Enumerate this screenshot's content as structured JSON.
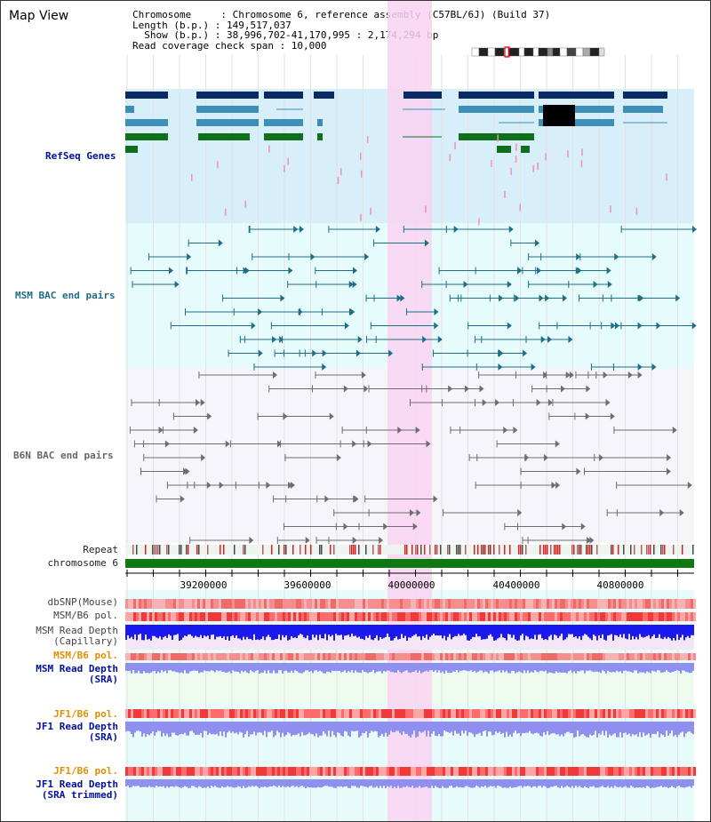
{
  "header": {
    "title": "Map View",
    "chromosome_line": "Chromosome     : Chromosome 6, reference assembly (C57BL/6J) (Build 37)",
    "length_line": "Length (b.p.) : 149,517,037",
    "show_line": "  Show (b.p.) : 38,996,702-41,170,995 : 2,174,294 bp",
    "coverage_line": "Read coverage check span : 10,000"
  },
  "tracks": {
    "refseq": "RefSeq Genes",
    "msm_bac": "MSM BAC end pairs",
    "b6n_bac": "B6N BAC end pairs",
    "repeat": "Repeat",
    "chromosome": "chromosome 6",
    "dbsnp": "dbSNP(Mouse)",
    "msm_b6_pol": "MSM/B6 pol.",
    "msm_depth_cap_1": "MSM Read Depth",
    "msm_depth_cap_2": "(Capillary)",
    "msm_b6_pol_2": "MSM/B6 pol.",
    "msm_depth_sra_1": "MSM Read Depth",
    "msm_depth_sra_2": "(SRA)",
    "jf1_b6_pol": "JF1/B6 pol.",
    "jf1_depth_sra_1": "JF1 Read Depth",
    "jf1_depth_sra_2": "(SRA)",
    "jf1_b6_pol_2": "JF1/B6 pol.",
    "jf1_depth_trim_1": "JF1 Read Depth",
    "jf1_depth_trim_2": "(SRA trimmed)"
  },
  "axis": {
    "ticks": [
      "39200000",
      "39600000",
      "40000000",
      "40400000",
      "40800000"
    ]
  },
  "colors": {
    "refseq_bg": "#d8effa",
    "msm_bg": "#e6fbfb",
    "b6n_bg": "#f6f6fa",
    "highlight": "#f9d4f1",
    "gene_navy": "#0a2a66",
    "gene_blue": "#3c8fb8",
    "gene_green": "#0f6f1a",
    "msm_line": "#1f6e88",
    "b6n_line": "#6e6e6e",
    "chrom_green": "#0c7a10",
    "depth_blue": "#1a1aee",
    "depth_lavender": "#8f8ff0"
  }
}
